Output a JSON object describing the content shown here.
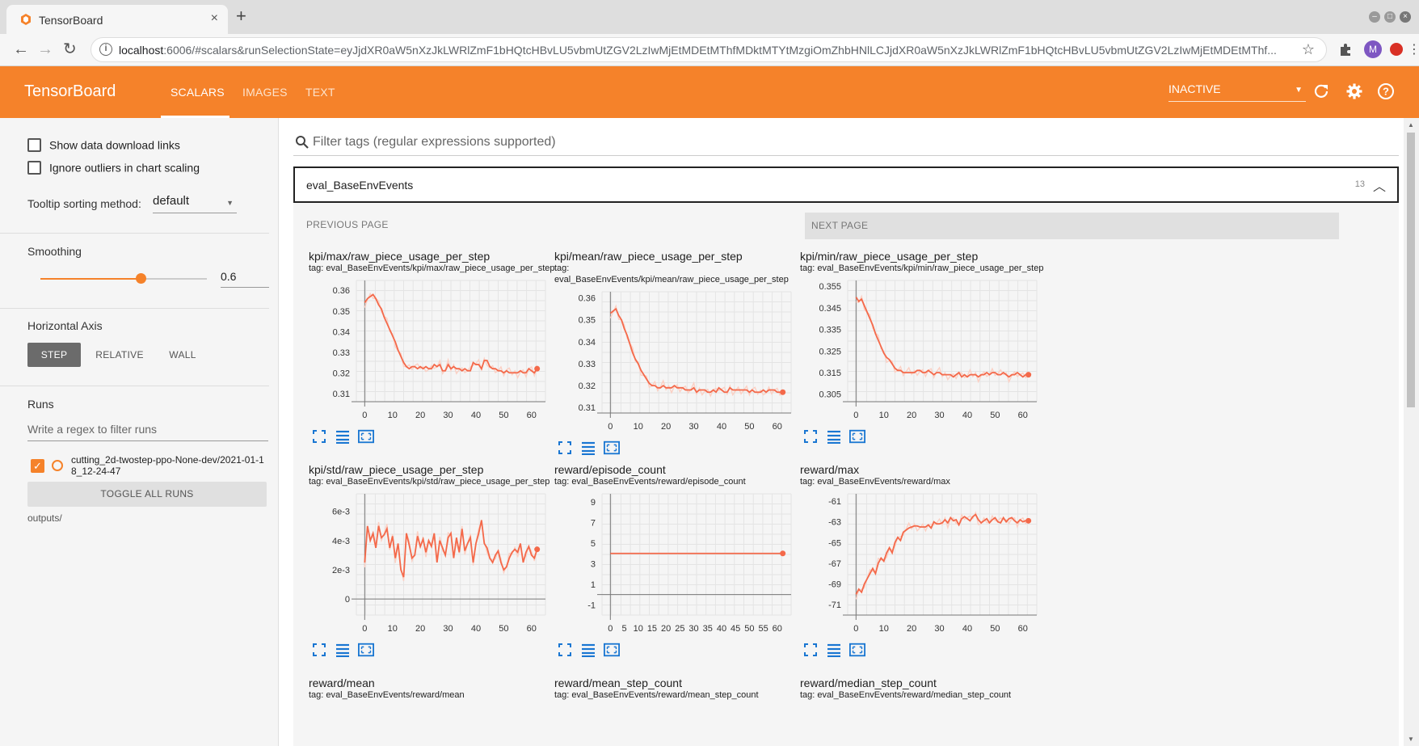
{
  "browser": {
    "tab_title": "TensorBoard",
    "tab_close": "×",
    "new_tab": "+",
    "url_host": "localhost",
    "url_rest": ":6006/#scalars&runSelectionState=eyJjdXR0aW5nXzJkLWRlZmF1bHQtcHBvLU5vbmUtZGV2LzIwMjEtMDEtMThfMDktMTYtMzgiOmZhbHNlLCJjdXR0aW5nXzJkLWRlZmF1bHQtcHBvLU5vbmUtZGV2LzIwMjEtMDEtMThf...",
    "profile_initial": "M"
  },
  "header": {
    "logo": "TensorBoard",
    "tabs": [
      "SCALARS",
      "IMAGES",
      "TEXT"
    ],
    "active_tab": "SCALARS",
    "status": "INACTIVE"
  },
  "sidebar": {
    "show_download_links": "Show data download links",
    "ignore_outliers": "Ignore outliers in chart scaling",
    "tooltip_sort_label": "Tooltip sorting method:",
    "tooltip_sort_value": "default",
    "smoothing_label": "Smoothing",
    "smoothing_value": "0.6",
    "smoothing_fraction": 0.6,
    "horizontal_axis_label": "Horizontal Axis",
    "axis_options": [
      "STEP",
      "RELATIVE",
      "WALL"
    ],
    "axis_selected": "STEP",
    "runs_label": "Runs",
    "runs_filter_placeholder": "Write a regex to filter runs",
    "run_name": "cutting_2d-twostep-ppo-None-dev/2021-01-18_12-24-47",
    "toggle_all_runs": "TOGGLE ALL RUNS",
    "outputs_label": "outputs/"
  },
  "main": {
    "filter_placeholder": "Filter tags (regular expressions supported)",
    "group_title": "eval_BaseEnvEvents",
    "group_count": "13",
    "prev_page": "PREVIOUS PAGE",
    "next_page": "NEXT PAGE"
  },
  "colors": {
    "accent": "#f5822a",
    "series": "#f4694a",
    "series_raw": "#fbd0c4"
  },
  "chart_data": [
    {
      "type": "line",
      "title": "kpi/max/raw_piece_usage_per_step",
      "tag": "tag: eval_BaseEnvEvents/kpi/max/raw_piece_usage_per_step",
      "x_ticks": [
        "0",
        "10",
        "20",
        "30",
        "40",
        "50",
        "60"
      ],
      "y_ticks": [
        "0.36",
        "0.35",
        "0.34",
        "0.33",
        "0.32",
        "0.31"
      ],
      "y_tick_values": [
        0.36,
        0.35,
        0.34,
        0.33,
        0.32,
        0.31
      ],
      "xlim": [
        -3,
        65
      ],
      "ylim": [
        0.306,
        0.3648
      ],
      "x": [
        0,
        1,
        2,
        3,
        4,
        5,
        6,
        7,
        8,
        9,
        10,
        11,
        12,
        13,
        14,
        15,
        16,
        17,
        18,
        19,
        20,
        21,
        22,
        23,
        24,
        25,
        26,
        27,
        28,
        29,
        30,
        31,
        32,
        33,
        34,
        35,
        36,
        37,
        38,
        39,
        40,
        41,
        42,
        43,
        44,
        45,
        46,
        47,
        48,
        49,
        50,
        51,
        52,
        53,
        54,
        55,
        56,
        57,
        58,
        59,
        60,
        61,
        62
      ],
      "values": [
        0.354,
        0.356,
        0.357,
        0.358,
        0.356,
        0.353,
        0.351,
        0.347,
        0.344,
        0.341,
        0.338,
        0.335,
        0.331,
        0.328,
        0.325,
        0.323,
        0.322,
        0.323,
        0.323,
        0.322,
        0.323,
        0.322,
        0.323,
        0.322,
        0.322,
        0.324,
        0.323,
        0.324,
        0.321,
        0.321,
        0.324,
        0.322,
        0.323,
        0.322,
        0.322,
        0.321,
        0.322,
        0.321,
        0.321,
        0.325,
        0.324,
        0.324,
        0.322,
        0.326,
        0.326,
        0.323,
        0.322,
        0.322,
        0.321,
        0.321,
        0.32,
        0.321,
        0.32,
        0.32,
        0.32,
        0.32,
        0.321,
        0.32,
        0.32,
        0.322,
        0.321,
        0.32,
        0.322
      ]
    },
    {
      "type": "line",
      "title": "kpi/mean/raw_piece_usage_per_step",
      "tag": "tag: eval_BaseEnvEvents/kpi/mean/raw_piece_usage_per_step",
      "x_ticks": [
        "0",
        "10",
        "20",
        "30",
        "40",
        "50",
        "60"
      ],
      "y_ticks": [
        "0.36",
        "0.35",
        "0.34",
        "0.33",
        "0.32",
        "0.31"
      ],
      "y_tick_values": [
        0.36,
        0.35,
        0.34,
        0.33,
        0.32,
        0.31
      ],
      "xlim": [
        -3,
        65
      ],
      "ylim": [
        0.3075,
        0.3628
      ],
      "x": [
        0,
        1,
        2,
        3,
        4,
        5,
        6,
        7,
        8,
        9,
        10,
        11,
        12,
        13,
        14,
        15,
        16,
        17,
        18,
        19,
        20,
        21,
        22,
        23,
        24,
        25,
        26,
        27,
        28,
        29,
        30,
        31,
        32,
        33,
        34,
        35,
        36,
        37,
        38,
        39,
        40,
        41,
        42,
        43,
        44,
        45,
        46,
        47,
        48,
        49,
        50,
        51,
        52,
        53,
        54,
        55,
        56,
        57,
        58,
        59,
        60,
        61,
        62
      ],
      "values": [
        0.353,
        0.354,
        0.355,
        0.352,
        0.35,
        0.346,
        0.343,
        0.339,
        0.335,
        0.332,
        0.33,
        0.327,
        0.325,
        0.323,
        0.321,
        0.32,
        0.32,
        0.319,
        0.319,
        0.32,
        0.319,
        0.319,
        0.319,
        0.32,
        0.319,
        0.319,
        0.319,
        0.318,
        0.318,
        0.318,
        0.319,
        0.317,
        0.318,
        0.318,
        0.318,
        0.317,
        0.317,
        0.318,
        0.317,
        0.319,
        0.318,
        0.317,
        0.317,
        0.319,
        0.318,
        0.318,
        0.318,
        0.318,
        0.318,
        0.318,
        0.317,
        0.318,
        0.317,
        0.317,
        0.317,
        0.318,
        0.317,
        0.318,
        0.318,
        0.318,
        0.317,
        0.317,
        0.317
      ]
    },
    {
      "type": "line",
      "title": "kpi/min/raw_piece_usage_per_step",
      "tag": "tag: eval_BaseEnvEvents/kpi/min/raw_piece_usage_per_step",
      "x_ticks": [
        "0",
        "10",
        "20",
        "30",
        "40",
        "50",
        "60"
      ],
      "y_ticks": [
        "0.355",
        "0.345",
        "0.335",
        "0.325",
        "0.315",
        "0.305"
      ],
      "y_tick_values": [
        0.355,
        0.345,
        0.335,
        0.325,
        0.315,
        0.305
      ],
      "xlim": [
        -3,
        65
      ],
      "ylim": [
        0.3015,
        0.3577
      ],
      "x": [
        0,
        1,
        2,
        3,
        4,
        5,
        6,
        7,
        8,
        9,
        10,
        11,
        12,
        13,
        14,
        15,
        16,
        17,
        18,
        19,
        20,
        21,
        22,
        23,
        24,
        25,
        26,
        27,
        28,
        29,
        30,
        31,
        32,
        33,
        34,
        35,
        36,
        37,
        38,
        39,
        40,
        41,
        42,
        43,
        44,
        45,
        46,
        47,
        48,
        49,
        50,
        51,
        52,
        53,
        54,
        55,
        56,
        57,
        58,
        59,
        60,
        61,
        62
      ],
      "values": [
        0.35,
        0.348,
        0.349,
        0.346,
        0.343,
        0.34,
        0.337,
        0.333,
        0.33,
        0.327,
        0.324,
        0.322,
        0.321,
        0.319,
        0.317,
        0.316,
        0.316,
        0.315,
        0.315,
        0.315,
        0.315,
        0.315,
        0.316,
        0.316,
        0.315,
        0.315,
        0.316,
        0.315,
        0.314,
        0.315,
        0.315,
        0.314,
        0.314,
        0.314,
        0.314,
        0.313,
        0.314,
        0.315,
        0.313,
        0.314,
        0.313,
        0.314,
        0.314,
        0.314,
        0.313,
        0.314,
        0.314,
        0.315,
        0.314,
        0.315,
        0.315,
        0.314,
        0.314,
        0.315,
        0.314,
        0.313,
        0.314,
        0.314,
        0.315,
        0.314,
        0.313,
        0.314,
        0.314
      ]
    },
    {
      "type": "line",
      "title": "kpi/std/raw_piece_usage_per_step",
      "tag": "tag: eval_BaseEnvEvents/kpi/std/raw_piece_usage_per_step",
      "x_ticks": [
        "0",
        "10",
        "20",
        "30",
        "40",
        "50",
        "60"
      ],
      "y_ticks": [
        "6e-3",
        "4e-3",
        "2e-3",
        "0"
      ],
      "y_tick_values": [
        0.006,
        0.004,
        0.002,
        0
      ],
      "xlim": [
        -3,
        65
      ],
      "ylim": [
        -0.0011,
        0.0072
      ],
      "x": [
        0,
        1,
        2,
        3,
        4,
        5,
        6,
        7,
        8,
        9,
        10,
        11,
        12,
        13,
        14,
        15,
        16,
        17,
        18,
        19,
        20,
        21,
        22,
        23,
        24,
        25,
        26,
        27,
        28,
        29,
        30,
        31,
        32,
        33,
        34,
        35,
        36,
        37,
        38,
        39,
        40,
        41,
        42,
        43,
        44,
        45,
        46,
        47,
        48,
        49,
        50,
        51,
        52,
        53,
        54,
        55,
        56,
        57,
        58,
        59,
        60,
        61,
        62
      ],
      "values": [
        0.0025,
        0.005,
        0.004,
        0.0045,
        0.0035,
        0.005,
        0.0042,
        0.0044,
        0.0048,
        0.0035,
        0.0043,
        0.0028,
        0.0038,
        0.002,
        0.0015,
        0.0045,
        0.0037,
        0.0028,
        0.003,
        0.0043,
        0.0036,
        0.0041,
        0.0032,
        0.004,
        0.0036,
        0.0045,
        0.0025,
        0.004,
        0.0035,
        0.003,
        0.0042,
        0.0045,
        0.0028,
        0.0042,
        0.0032,
        0.0048,
        0.0033,
        0.0038,
        0.0042,
        0.0025,
        0.0038,
        0.0045,
        0.0054,
        0.0038,
        0.0035,
        0.0028,
        0.0025,
        0.003,
        0.0033,
        0.0025,
        0.002,
        0.0022,
        0.0028,
        0.0032,
        0.0034,
        0.0032,
        0.0038,
        0.0025,
        0.0032,
        0.0036,
        0.003,
        0.0028,
        0.0034
      ]
    },
    {
      "type": "line",
      "title": "reward/episode_count",
      "tag": "tag: eval_BaseEnvEvents/reward/episode_count",
      "x_ticks": [
        "0",
        "5",
        "10",
        "15",
        "20",
        "25",
        "30",
        "35",
        "40",
        "45",
        "50",
        "55",
        "60"
      ],
      "y_ticks": [
        "9",
        "7",
        "5",
        "3",
        "1",
        "-1"
      ],
      "y_tick_values": [
        9,
        7,
        5,
        3,
        1,
        -1
      ],
      "xlim": [
        -3,
        65
      ],
      "ylim": [
        -2.0,
        9.8
      ],
      "x": [
        0,
        62
      ],
      "values": [
        4,
        4
      ]
    },
    {
      "type": "line",
      "title": "reward/max",
      "tag": "tag: eval_BaseEnvEvents/reward/max",
      "x_ticks": [
        "0",
        "10",
        "20",
        "30",
        "40",
        "50",
        "60"
      ],
      "y_ticks": [
        "-61",
        "-63",
        "-65",
        "-67",
        "-69",
        "-71"
      ],
      "y_tick_values": [
        -61,
        -63,
        -65,
        -67,
        -69,
        -71
      ],
      "xlim": [
        -3,
        65
      ],
      "ylim": [
        -72.0,
        -60.3
      ],
      "x": [
        0,
        1,
        2,
        3,
        4,
        5,
        6,
        7,
        8,
        9,
        10,
        11,
        12,
        13,
        14,
        15,
        16,
        17,
        18,
        19,
        20,
        21,
        22,
        23,
        24,
        25,
        26,
        27,
        28,
        29,
        30,
        31,
        32,
        33,
        34,
        35,
        36,
        37,
        38,
        39,
        40,
        41,
        42,
        43,
        44,
        45,
        46,
        47,
        48,
        49,
        50,
        51,
        52,
        53,
        54,
        55,
        56,
        57,
        58,
        59,
        60,
        61,
        62
      ],
      "values": [
        -70,
        -69.5,
        -69.8,
        -69,
        -68.5,
        -68,
        -67.5,
        -68,
        -67,
        -66.5,
        -66.8,
        -66,
        -65.5,
        -66,
        -65,
        -64.5,
        -64.8,
        -64,
        -63.8,
        -63.6,
        -63.5,
        -63.4,
        -63.4,
        -63.5,
        -63.5,
        -63.5,
        -63.3,
        -63.6,
        -63,
        -63.2,
        -63.2,
        -63.1,
        -62.8,
        -63.1,
        -62.6,
        -62.9,
        -62.8,
        -63.3,
        -62.7,
        -62.5,
        -62.7,
        -62.9,
        -62.5,
        -62.3,
        -62.8,
        -63.1,
        -62.9,
        -62.7,
        -63.1,
        -62.8,
        -62.6,
        -63.0,
        -63.1,
        -62.6,
        -63.0,
        -62.7,
        -62.6,
        -62.9,
        -63.1,
        -62.8,
        -63.0,
        -62.9,
        -62.9
      ]
    }
  ],
  "partial_cards": [
    {
      "title": "reward/mean",
      "tag": "tag: eval_BaseEnvEvents/reward/mean"
    },
    {
      "title": "reward/mean_step_count",
      "tag": "tag: eval_BaseEnvEvents/reward/mean_step_count"
    },
    {
      "title": "reward/median_step_count",
      "tag": "tag: eval_BaseEnvEvents/reward/median_step_count"
    }
  ]
}
